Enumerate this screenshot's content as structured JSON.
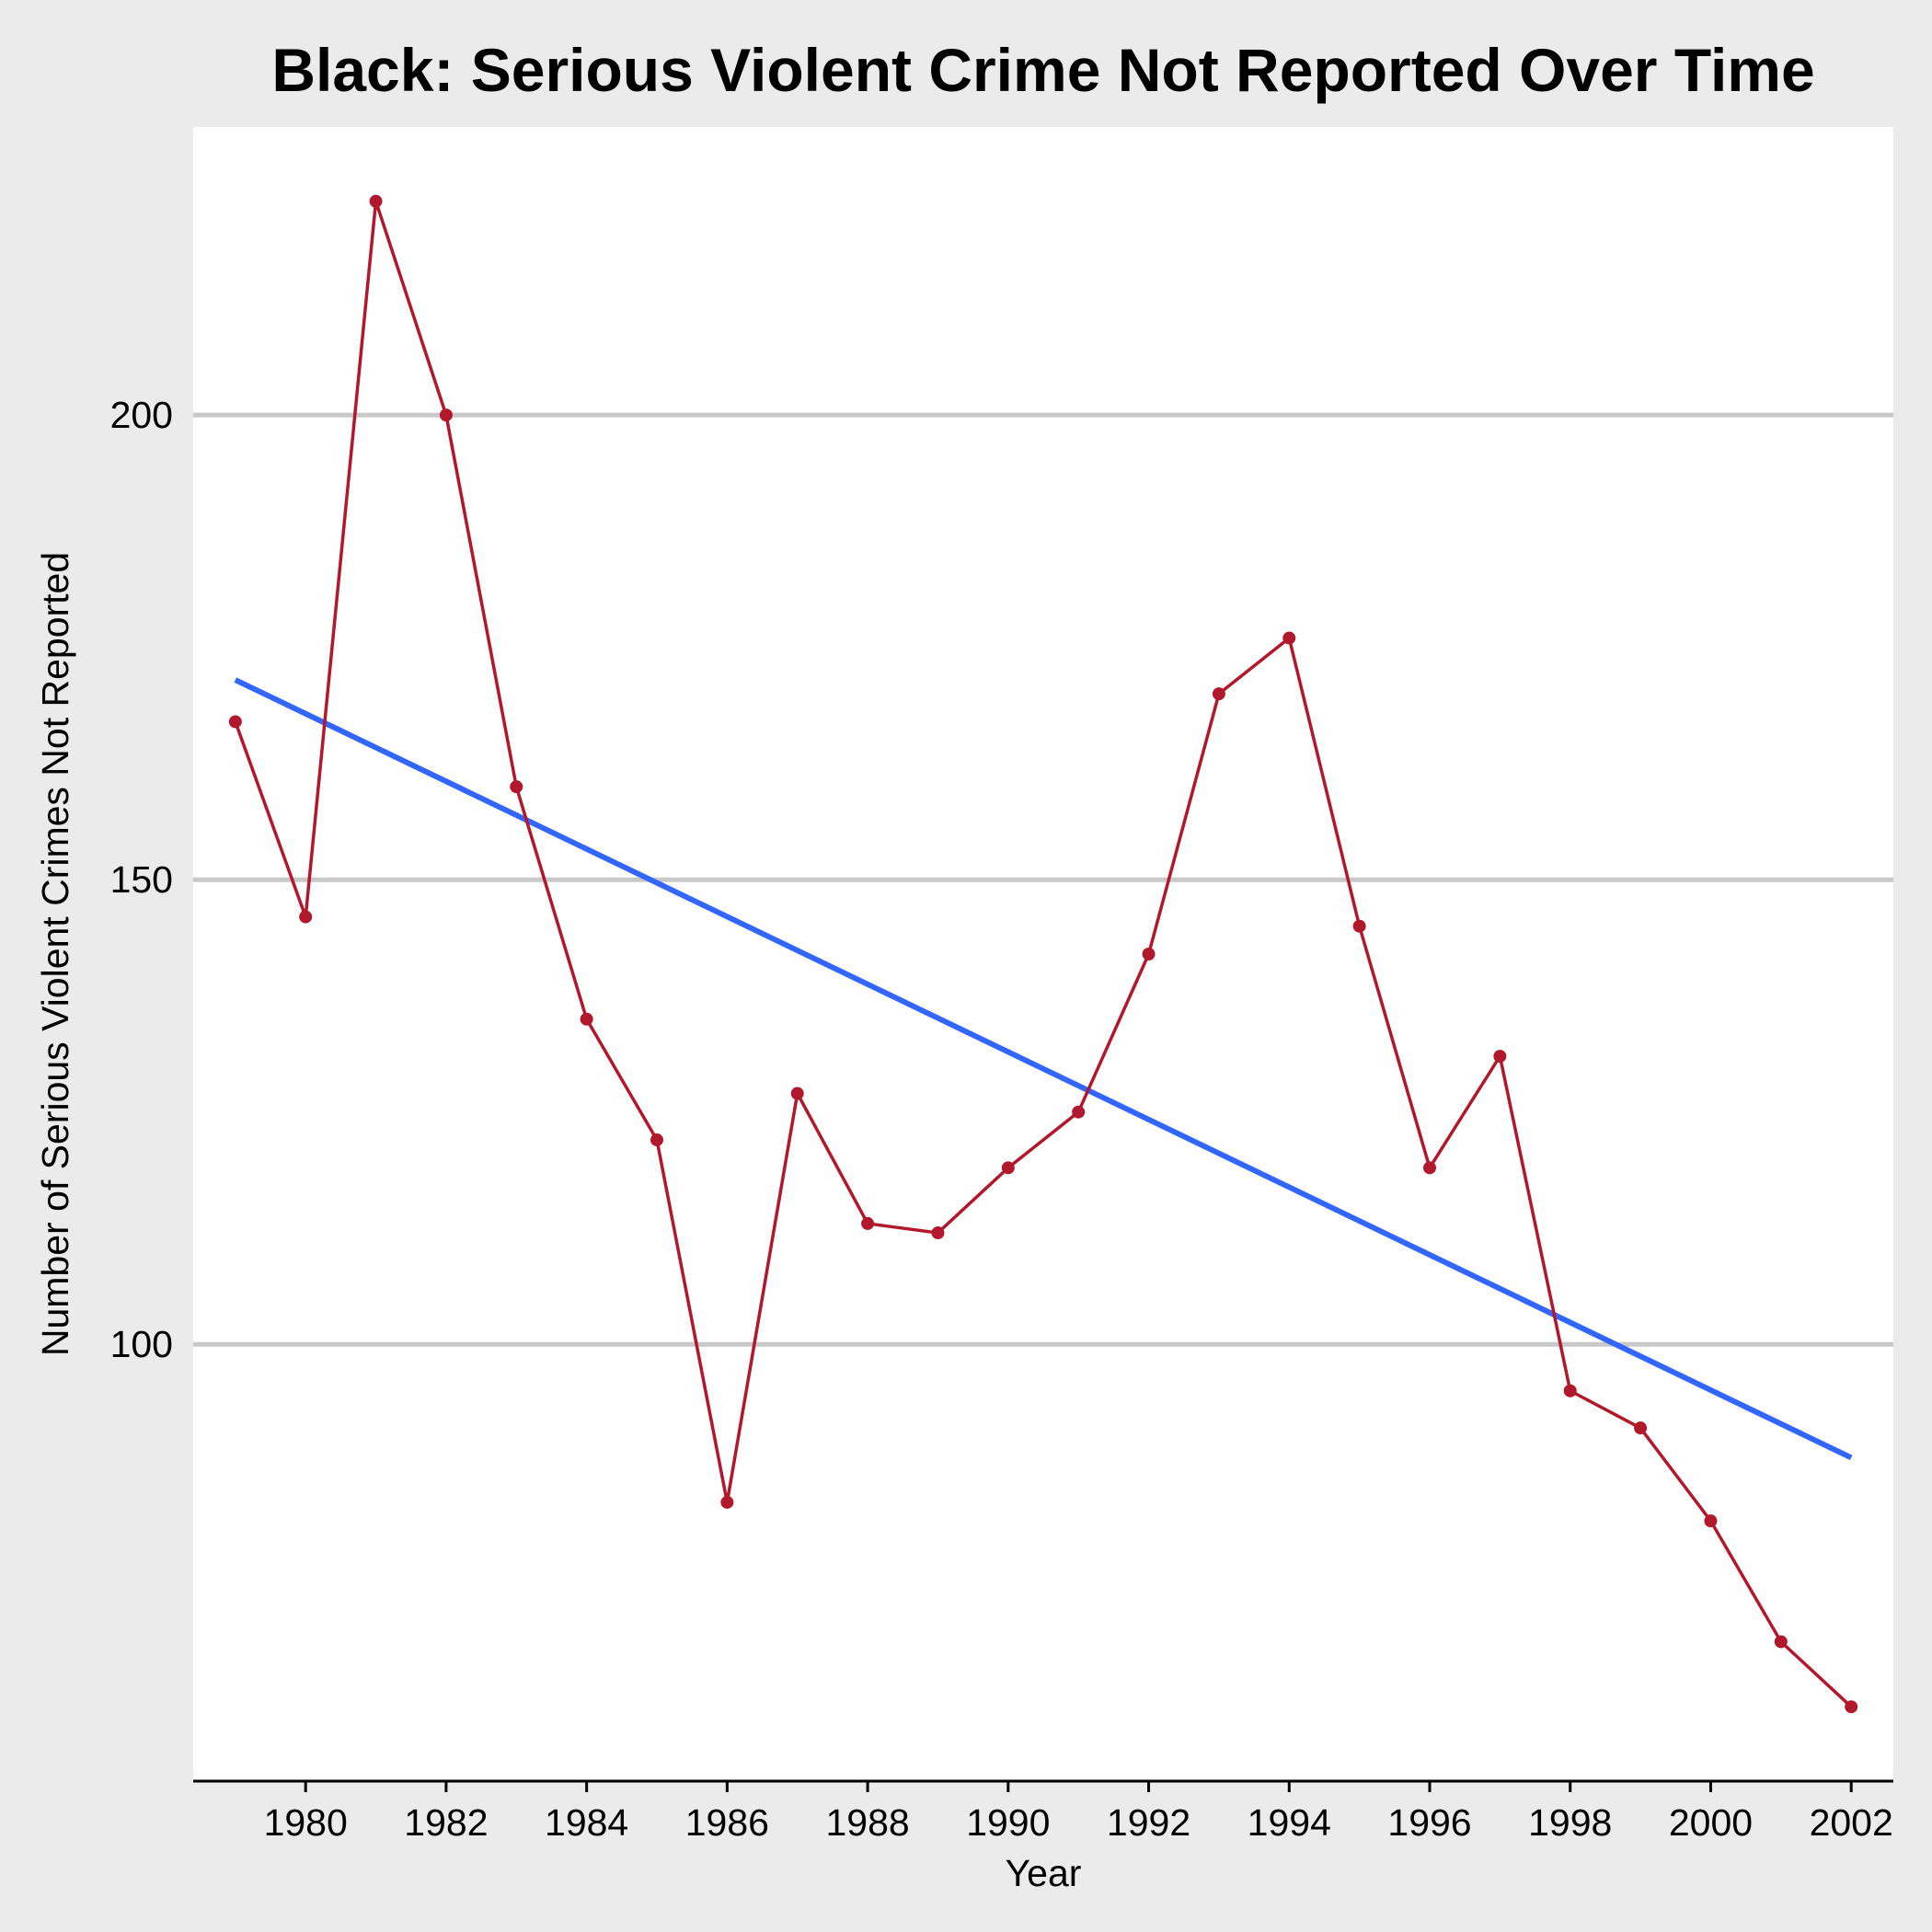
{
  "chart_data": {
    "type": "line",
    "title": "Black: Serious Violent Crime Not Reported Over Time",
    "xlabel": "Year",
    "ylabel": "Number of Serious Violent Crimes Not Reported",
    "xlim": [
      1978.4,
      2002.6
    ],
    "ylim": [
      53,
      231
    ],
    "x_ticks": [
      1980,
      1982,
      1984,
      1986,
      1988,
      1990,
      1992,
      1994,
      1996,
      1998,
      2000,
      2002
    ],
    "y_ticks": [
      100,
      150,
      200
    ],
    "grid": "horizontal",
    "legend": "none",
    "series": [
      {
        "x": [
          1979,
          1980,
          1981,
          1982,
          1983,
          1984,
          1985,
          1986,
          1987,
          1988,
          1989,
          1990,
          1991,
          1992,
          1993,
          1994,
          1995,
          1996,
          1997,
          1998,
          1999,
          2000,
          2001,
          2002
        ],
        "values": [
          167,
          146,
          223,
          200,
          160,
          135,
          122,
          83,
          127,
          113,
          112,
          119,
          125,
          142,
          170,
          176,
          145,
          119,
          131,
          95,
          91,
          81,
          68,
          61
        ],
        "color": "#b2182b"
      }
    ],
    "trend_line": {
      "x": [
        1979,
        2002
      ],
      "values": [
        171.5,
        87.8
      ],
      "color": "#3366ff"
    }
  }
}
